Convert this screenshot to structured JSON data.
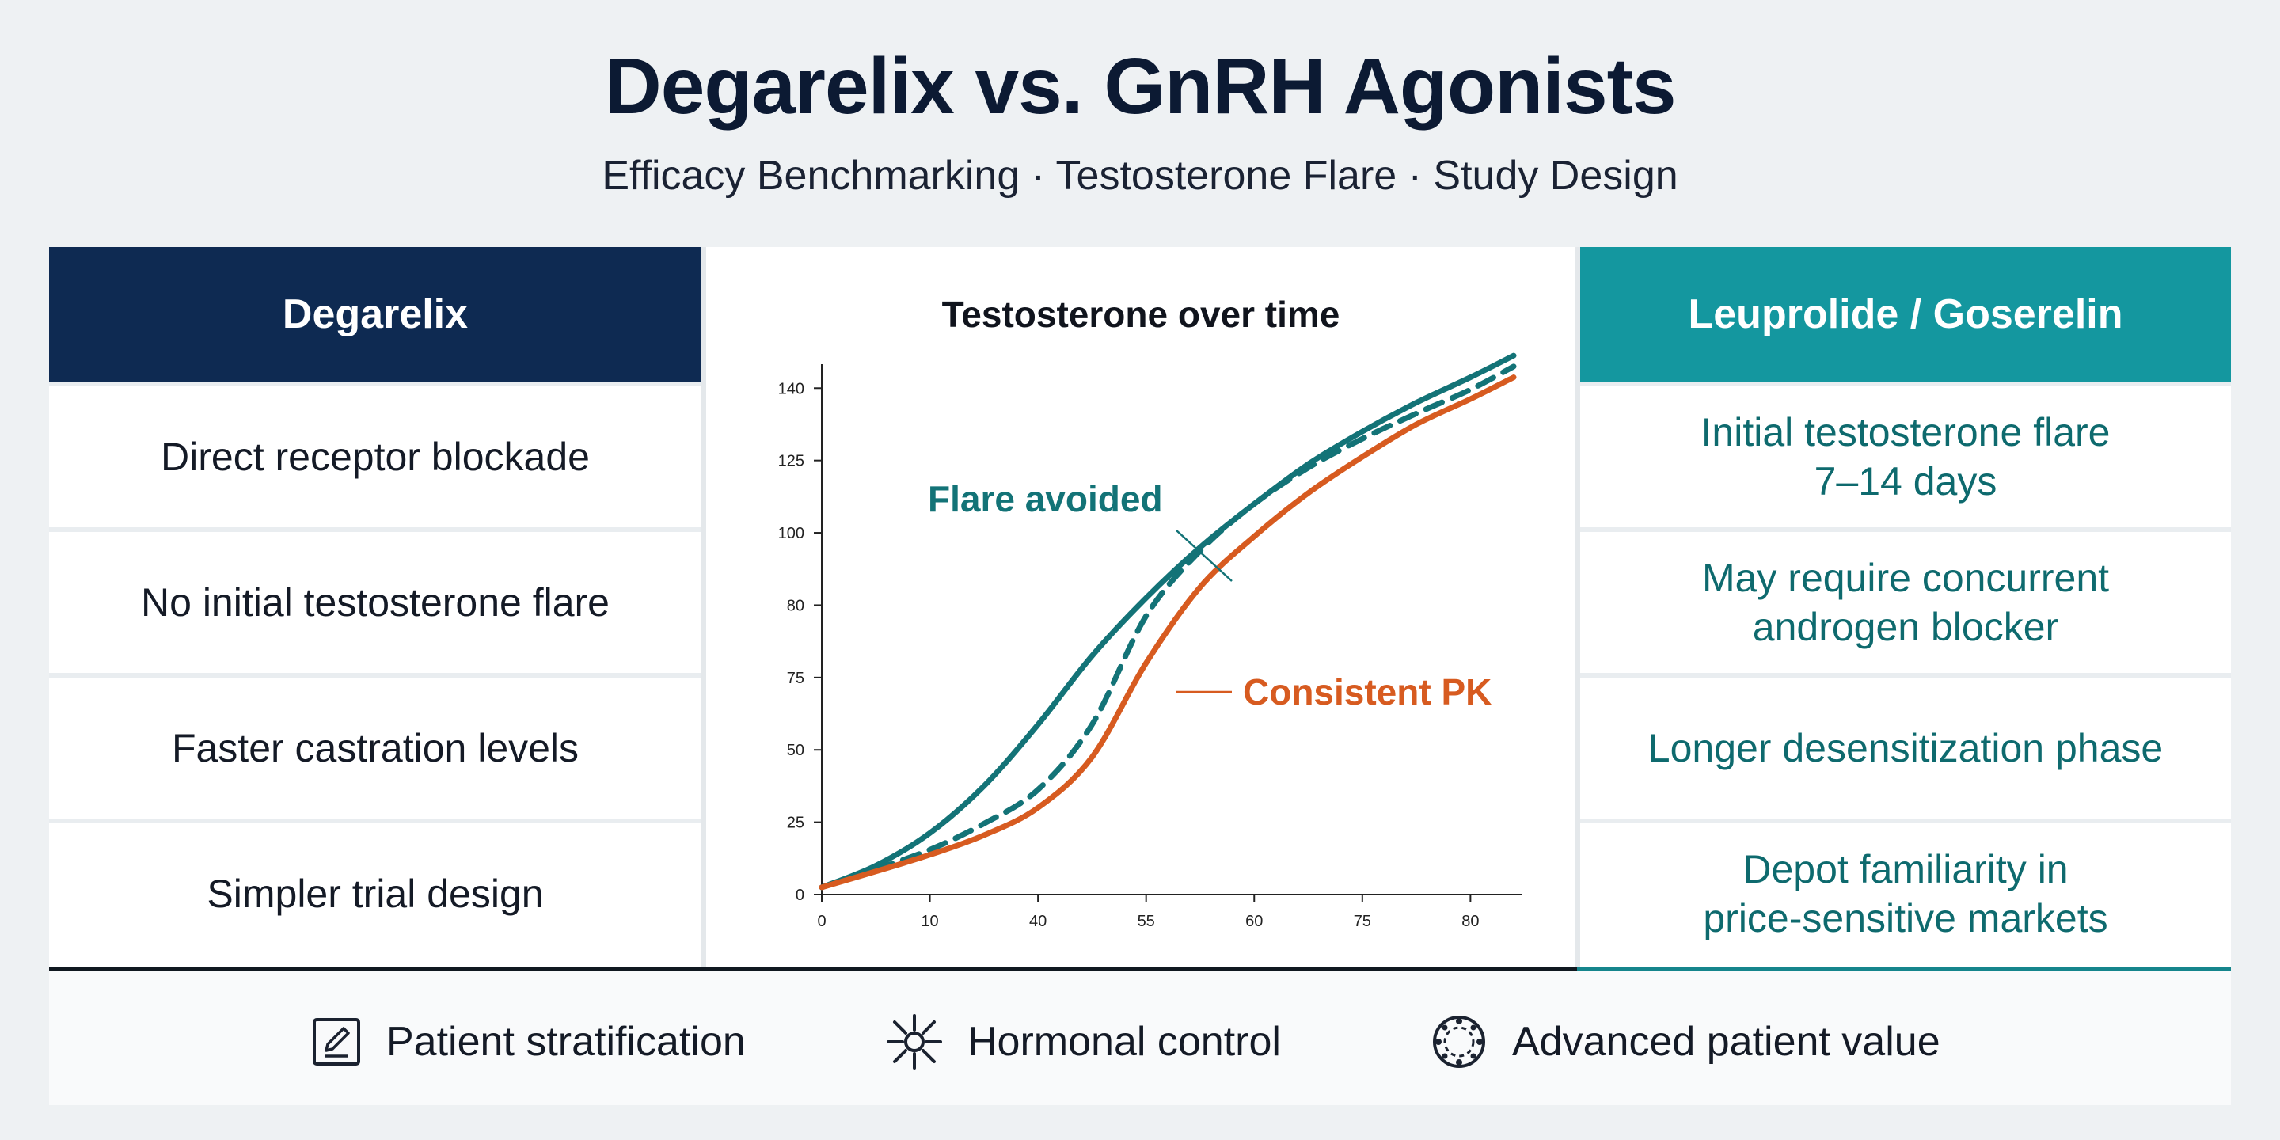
{
  "header": {
    "title": "Degarelix vs. GnRH Agonists",
    "subtitle": "Efficacy Benchmarking · Testosterone Flare · Study Design"
  },
  "left_column": {
    "heading": "Degarelix",
    "rows": [
      "Direct receptor blockade",
      "No initial testosterone flare",
      "Faster castration levels",
      "Simpler trial design"
    ]
  },
  "right_column": {
    "heading": "Leuprolide / Goserelin",
    "rows": [
      [
        "Initial testosterone flare",
        "7–14 days"
      ],
      [
        "May require concurrent",
        "androgen blocker"
      ],
      [
        "Longer desensitization phase"
      ],
      [
        "Depot familiarity in",
        "price-sensitive markets"
      ]
    ]
  },
  "chart_data": {
    "type": "line",
    "title": "Testosterone over time",
    "x_ticks": [
      "0",
      "10",
      "40",
      "55",
      "60",
      "75",
      "80"
    ],
    "y_ticks": [
      "0",
      "25",
      "50",
      "75",
      "80",
      "100",
      "125",
      "140"
    ],
    "x_range": [
      0,
      6.4
    ],
    "y_range": [
      0,
      7.2
    ],
    "note": "Axis tick labels are irregular as printed; values below are read positionally against the printed ticks (x: index of tick, y: index of tick).",
    "series": [
      {
        "style": "solid",
        "color": "#137377",
        "points": [
          [
            0,
            0.1
          ],
          [
            0.5,
            0.4
          ],
          [
            1,
            0.85
          ],
          [
            1.5,
            1.5
          ],
          [
            2,
            2.35
          ],
          [
            2.5,
            3.3
          ],
          [
            3,
            4.1
          ],
          [
            3.5,
            4.8
          ],
          [
            4,
            5.4
          ],
          [
            4.5,
            5.95
          ],
          [
            5,
            6.4
          ],
          [
            5.5,
            6.8
          ],
          [
            6,
            7.15
          ],
          [
            6.4,
            7.45
          ]
        ]
      },
      {
        "style": "dashed",
        "color": "#137377",
        "points": [
          [
            0,
            0.1
          ],
          [
            0.5,
            0.35
          ],
          [
            1,
            0.62
          ],
          [
            1.5,
            0.98
          ],
          [
            2,
            1.45
          ],
          [
            2.5,
            2.35
          ],
          [
            3,
            3.85
          ],
          [
            3.5,
            4.75
          ],
          [
            4,
            5.4
          ],
          [
            4.5,
            5.9
          ],
          [
            5,
            6.3
          ],
          [
            5.5,
            6.65
          ],
          [
            6,
            6.98
          ],
          [
            6.4,
            7.3
          ]
        ]
      },
      {
        "style": "solid",
        "color": "#d75b20",
        "points": [
          [
            0,
            0.1
          ],
          [
            0.5,
            0.32
          ],
          [
            1,
            0.55
          ],
          [
            1.5,
            0.82
          ],
          [
            2,
            1.2
          ],
          [
            2.5,
            1.9
          ],
          [
            3,
            3.2
          ],
          [
            3.5,
            4.25
          ],
          [
            4,
            4.95
          ],
          [
            4.5,
            5.55
          ],
          [
            5,
            6.05
          ],
          [
            5.5,
            6.5
          ],
          [
            6,
            6.85
          ],
          [
            6.4,
            7.15
          ]
        ]
      }
    ],
    "annotations": [
      {
        "text": "Flare avoided",
        "color": "#137377"
      },
      {
        "text": "Consistent PK",
        "color": "#d75b20"
      }
    ]
  },
  "footer": {
    "items": [
      {
        "label": "Patient stratification",
        "icon": "edit-square-icon"
      },
      {
        "label": "Hormonal control",
        "icon": "spark-node-icon"
      },
      {
        "label": "Advanced patient value",
        "icon": "circle-dots-icon"
      }
    ]
  }
}
